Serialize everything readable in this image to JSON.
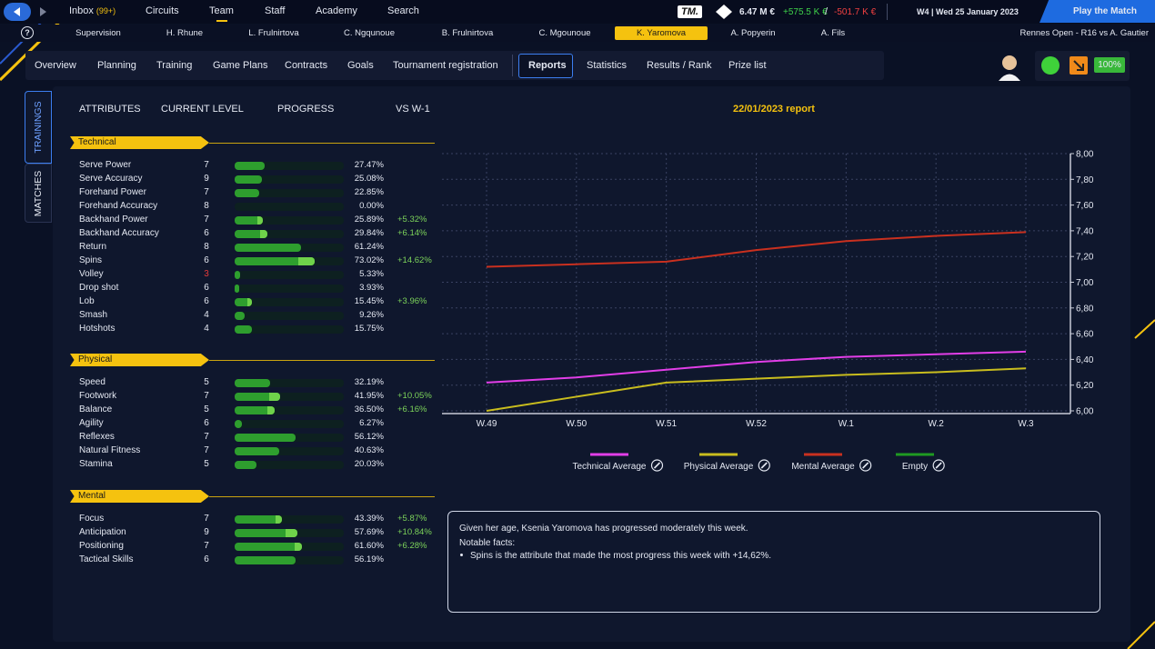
{
  "nav": {
    "items": [
      {
        "label": "Inbox",
        "badge": "(99+)"
      },
      {
        "label": "Circuits"
      },
      {
        "label": "Team",
        "selected": true
      },
      {
        "label": "Staff"
      },
      {
        "label": "Academy"
      },
      {
        "label": "Search"
      }
    ]
  },
  "finance": {
    "logo": "TM.",
    "balance": "6.47 M €",
    "income": "+575.5 K €",
    "separator": "/",
    "expense": "-501.7 K €"
  },
  "date": "W4 | Wed 25 January 2023",
  "play_button": "Play the Match",
  "help": "?",
  "players": [
    {
      "label": "Supervision"
    },
    {
      "label": "H. Rhune"
    },
    {
      "label": "L. Frulnirtova"
    },
    {
      "label": "C. Ngqunoue"
    },
    {
      "label": "B. Frulnirtova"
    },
    {
      "label": "C. Mgounoue"
    },
    {
      "label": "K. Yaromova",
      "selected": true
    },
    {
      "label": "A. Popyerin"
    },
    {
      "label": "A. Fils"
    }
  ],
  "match_info": "Rennes Open - R16 vs A. Gautier",
  "tabs": [
    {
      "label": "Overview"
    },
    {
      "label": "Planning"
    },
    {
      "label": "Training"
    },
    {
      "label": "Game Plans"
    },
    {
      "label": "Contracts"
    },
    {
      "label": "Goals"
    },
    {
      "label": "Tournament registration"
    },
    {
      "label": "Reports",
      "selected": true
    },
    {
      "label": "Statistics"
    },
    {
      "label": "Results / Rank"
    },
    {
      "label": "Prize list"
    }
  ],
  "morale": "100%",
  "side_tabs": [
    {
      "label": "TRAININGS",
      "selected": true
    },
    {
      "label": "MATCHES"
    }
  ],
  "attributes": {
    "headers": [
      "ATTRIBUTES",
      "CURRENT LEVEL",
      "PROGRESS",
      "VS W-1"
    ],
    "groups": [
      {
        "name": "Technical",
        "rows": [
          {
            "name": "Serve Power",
            "level": 7,
            "progress": 27.47,
            "progress_label": "27.47%"
          },
          {
            "name": "Serve Accuracy",
            "level": 9,
            "progress": 25.08,
            "progress_label": "25.08%"
          },
          {
            "name": "Forehand Power",
            "level": 7,
            "progress": 22.85,
            "progress_label": "22.85%"
          },
          {
            "name": "Forehand Accuracy",
            "level": 8,
            "progress": 0,
            "progress_label": "0.00%"
          },
          {
            "name": "Backhand Power",
            "level": 7,
            "progress": 25.89,
            "progress_label": "25.89%",
            "change": 5.32,
            "change_label": "+5.32%"
          },
          {
            "name": "Backhand Accuracy",
            "level": 6,
            "progress": 29.84,
            "progress_label": "29.84%",
            "change": 6.14,
            "change_label": "+6.14%"
          },
          {
            "name": "Return",
            "level": 8,
            "progress": 61.24,
            "progress_label": "61.24%"
          },
          {
            "name": "Spins",
            "level": 6,
            "progress": 73.02,
            "progress_label": "73.02%",
            "change": 14.62,
            "change_label": "+14.62%"
          },
          {
            "name": "Volley",
            "level": 3,
            "level_color": "#e23a3a",
            "progress": 5.33,
            "progress_label": "5.33%"
          },
          {
            "name": "Drop shot",
            "level": 6,
            "progress": 3.93,
            "progress_label": "3.93%"
          },
          {
            "name": "Lob",
            "level": 6,
            "progress": 15.45,
            "progress_label": "15.45%",
            "change": 3.96,
            "change_label": "+3.96%"
          },
          {
            "name": "Smash",
            "level": 4,
            "progress": 9.26,
            "progress_label": "9.26%"
          },
          {
            "name": "Hotshots",
            "level": 4,
            "progress": 15.75,
            "progress_label": "15.75%"
          }
        ]
      },
      {
        "name": "Physical",
        "rows": [
          {
            "name": "Speed",
            "level": 5,
            "progress": 32.19,
            "progress_label": "32.19%"
          },
          {
            "name": "Footwork",
            "level": 7,
            "progress": 41.95,
            "progress_label": "41.95%",
            "change": 10.05,
            "change_label": "+10.05%"
          },
          {
            "name": "Balance",
            "level": 5,
            "progress": 36.5,
            "progress_label": "36.50%",
            "change": 6.16,
            "change_label": "+6.16%"
          },
          {
            "name": "Agility",
            "level": 6,
            "progress": 6.27,
            "progress_label": "6.27%"
          },
          {
            "name": "Reflexes",
            "level": 7,
            "progress": 56.12,
            "progress_label": "56.12%"
          },
          {
            "name": "Natural Fitness",
            "level": 7,
            "progress": 40.63,
            "progress_label": "40.63%"
          },
          {
            "name": "Stamina",
            "level": 5,
            "progress": 20.03,
            "progress_label": "20.03%"
          }
        ]
      },
      {
        "name": "Mental",
        "rows": [
          {
            "name": "Focus",
            "level": 7,
            "progress": 43.39,
            "progress_label": "43.39%",
            "change": 5.87,
            "change_label": "+5.87%"
          },
          {
            "name": "Anticipation",
            "level": 9,
            "progress": 57.69,
            "progress_label": "57.69%",
            "change": 10.84,
            "change_label": "+10.84%"
          },
          {
            "name": "Positioning",
            "level": 7,
            "progress": 61.6,
            "progress_label": "61.60%",
            "change": 6.28,
            "change_label": "+6.28%"
          },
          {
            "name": "Tactical Skills",
            "level": 6,
            "progress": 56.19,
            "progress_label": "56.19%"
          }
        ]
      }
    ]
  },
  "chart_data": {
    "type": "line",
    "title": "22/01/2023 report",
    "categories": [
      "W.49",
      "W.50",
      "W.51",
      "W.52",
      "W.1",
      "W.2",
      "W.3"
    ],
    "series": [
      {
        "name": "Technical Average",
        "color": "#e23ee8",
        "values": [
          6.22,
          6.26,
          6.32,
          6.38,
          6.42,
          6.44,
          6.46
        ]
      },
      {
        "name": "Physical Average",
        "color": "#c9bd1e",
        "values": [
          6.0,
          6.11,
          6.22,
          6.25,
          6.28,
          6.3,
          6.33
        ]
      },
      {
        "name": "Mental Average",
        "color": "#c9301f",
        "values": [
          7.12,
          7.14,
          7.16,
          7.25,
          7.32,
          7.36,
          7.39
        ]
      },
      {
        "name": "Empty",
        "color": "#1f9a22",
        "values": [
          null,
          null,
          null,
          null,
          null,
          null,
          null
        ]
      }
    ],
    "ylim": [
      6,
      8
    ],
    "yticks": [
      {
        "value": 6,
        "label": "6,00"
      },
      {
        "value": 6.2,
        "label": "6,20"
      },
      {
        "value": 6.4,
        "label": "6,40"
      },
      {
        "value": 6.6,
        "label": "6,60"
      },
      {
        "value": 6.8,
        "label": "6,80"
      },
      {
        "value": 7,
        "label": "7,00"
      },
      {
        "value": 7.2,
        "label": "7,20"
      },
      {
        "value": 7.4,
        "label": "7,40"
      },
      {
        "value": 7.6,
        "label": "7,60"
      },
      {
        "value": 7.8,
        "label": "7,80"
      },
      {
        "value": 8,
        "label": "8,00"
      }
    ],
    "grid": true
  },
  "report": {
    "summary": "Given her age, Ksenia Yaromova has progressed moderately this week.",
    "notable_heading": "Notable facts:",
    "facts": [
      "Spins is the attribute that made the most progress this week with +14,62%."
    ]
  }
}
